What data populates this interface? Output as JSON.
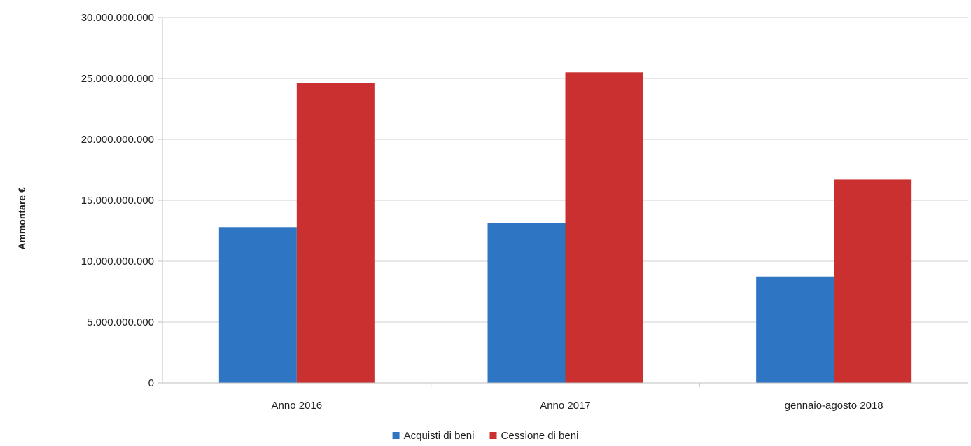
{
  "chart_data": {
    "type": "bar",
    "categories": [
      "Anno 2016",
      "Anno 2017",
      "gennaio-agosto 2018"
    ],
    "series": [
      {
        "name": "Acquisti di beni",
        "color": "#2e75c3",
        "values": [
          12800000000,
          13150000000,
          8750000000
        ]
      },
      {
        "name": "Cessione di beni",
        "color": "#c9302f",
        "values": [
          24650000000,
          25500000000,
          16700000000
        ]
      }
    ],
    "ylabel": "Ammontare €",
    "xlabel": "",
    "ylim": [
      0,
      30000000000
    ],
    "yticks": [
      0,
      5000000000,
      10000000000,
      15000000000,
      20000000000,
      25000000000,
      30000000000
    ],
    "ytick_labels": [
      "0",
      "5.000.000.000",
      "10.000.000.000",
      "15.000.000.000",
      "20.000.000.000",
      "25.000.000.000",
      "30.000.000.000"
    ],
    "grid": true,
    "legend": "bottom-center",
    "colors": {
      "gridline": "#d0d0d0",
      "axis": "#bfbfbf"
    }
  }
}
